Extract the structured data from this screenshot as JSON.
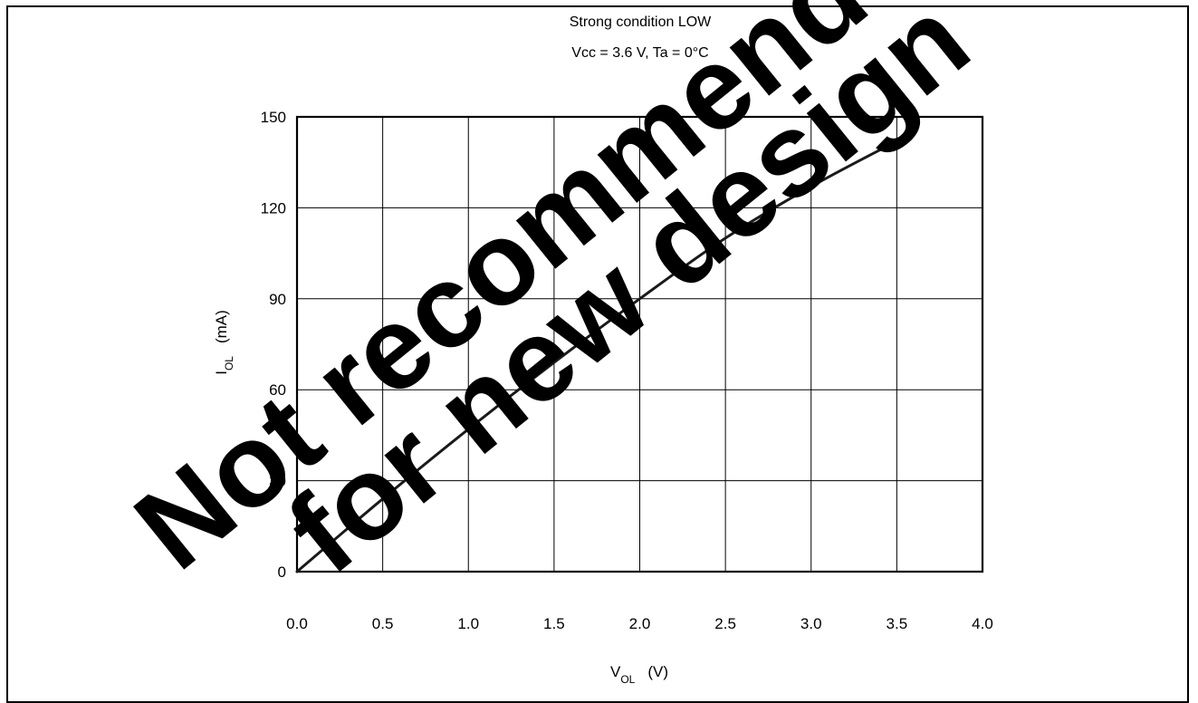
{
  "chart_data": {
    "type": "line",
    "title": "Strong condition LOW",
    "subtitle": "Vcc = 3.6 V, Ta = 0°C",
    "xlabel": {
      "main": "V",
      "sub": "OL",
      "unit": "(V)"
    },
    "ylabel": {
      "main": "I",
      "sub": "OL",
      "unit": "(mA)"
    },
    "xlim": [
      0.0,
      4.0
    ],
    "ylim": [
      0,
      150
    ],
    "x_ticks": [
      "0.0",
      "0.5",
      "1.0",
      "1.5",
      "2.0",
      "2.5",
      "3.0",
      "3.5",
      "4.0"
    ],
    "y_ticks": [
      "0",
      "30",
      "60",
      "90",
      "120",
      "150"
    ],
    "grid": true,
    "line_color": "#1a1a1a",
    "series": [
      {
        "x": [
          0.0,
          0.5,
          1.0,
          1.5,
          2.0,
          2.5,
          3.0,
          3.5,
          3.6
        ],
        "y": [
          0,
          24,
          47,
          69,
          90,
          110,
          127,
          142,
          145
        ]
      }
    ]
  },
  "watermark": {
    "line1": "Not recommended",
    "line2": "for new design",
    "color": "#ff0000"
  }
}
